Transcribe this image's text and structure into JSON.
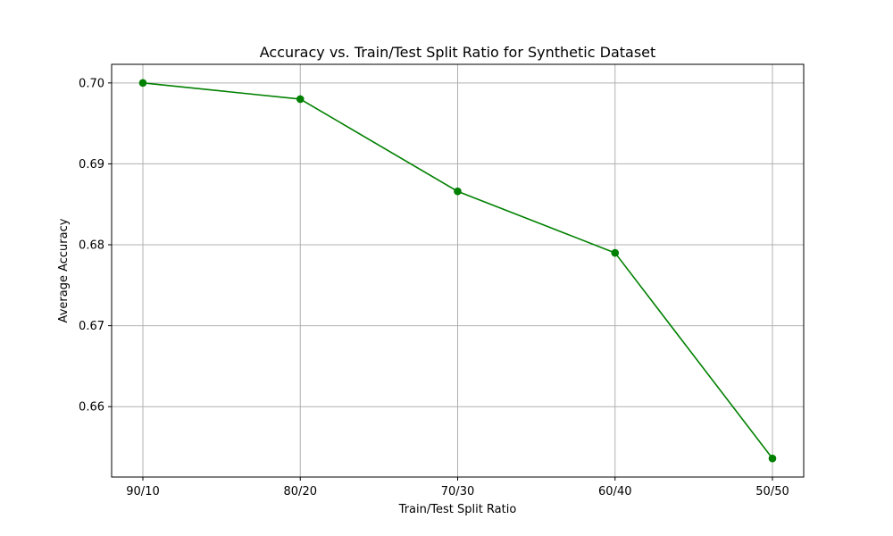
{
  "chart_data": {
    "type": "line",
    "title": "Accuracy vs. Train/Test Split Ratio for Synthetic Dataset",
    "xlabel": "Train/Test Split Ratio",
    "ylabel": "Average Accuracy",
    "categories": [
      "90/10",
      "80/20",
      "70/30",
      "60/40",
      "50/50"
    ],
    "series": [
      {
        "values": [
          0.7,
          0.698,
          0.6866,
          0.679,
          0.6536
        ],
        "color": "#008000",
        "marker": "circle"
      }
    ],
    "yticks": [
      "0.66",
      "0.67",
      "0.68",
      "0.69",
      "0.70"
    ],
    "ylim": [
      0.6513,
      0.7023
    ],
    "grid": true,
    "grid_color": "#b0b0b0"
  }
}
